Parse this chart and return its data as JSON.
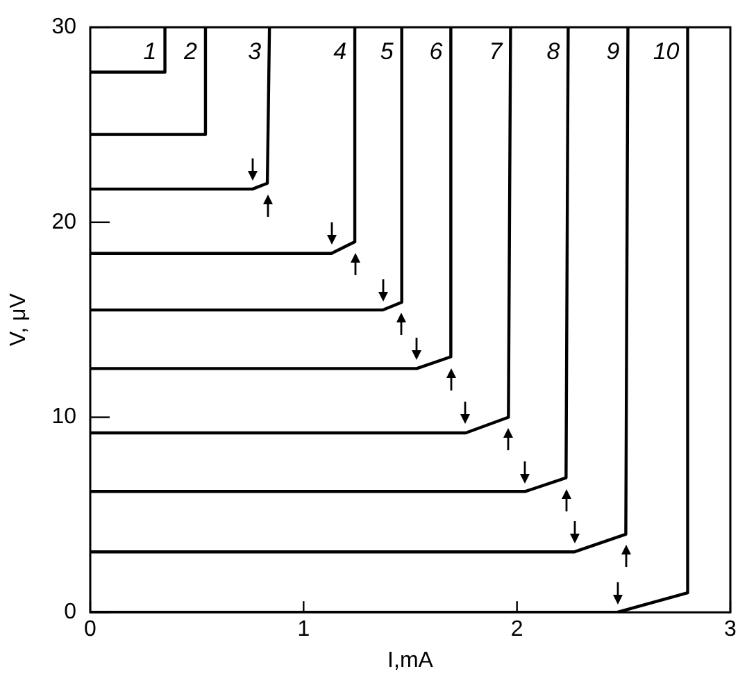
{
  "chart_data": {
    "type": "line",
    "xlabel": "I,mA",
    "ylabel": "V, μV",
    "xlim": [
      0,
      3
    ],
    "ylim": [
      0,
      30
    ],
    "xticks": [
      0,
      1,
      2,
      3
    ],
    "yticks": [
      0,
      10,
      20,
      30
    ],
    "grid": false,
    "legend": false,
    "marker": "none",
    "line_style": "solid",
    "series": [
      {
        "name": "1",
        "color": "#000000",
        "x": [
          0,
          0.35,
          0.35
        ],
        "values": [
          27.7,
          27.7,
          30
        ]
      },
      {
        "name": "2",
        "color": "#000000",
        "x": [
          0,
          0.54,
          0.54
        ],
        "values": [
          24.5,
          24.5,
          30
        ]
      },
      {
        "name": "3",
        "color": "#000000",
        "x": [
          0,
          0.76,
          0.83,
          0.84
        ],
        "values": [
          21.7,
          21.7,
          22.0,
          30
        ]
      },
      {
        "name": "4",
        "color": "#000000",
        "x": [
          0,
          1.13,
          1.24,
          1.24
        ],
        "values": [
          18.4,
          18.4,
          19.0,
          30
        ]
      },
      {
        "name": "5",
        "color": "#000000",
        "x": [
          0,
          1.37,
          1.46,
          1.46
        ],
        "values": [
          15.5,
          15.5,
          15.9,
          30
        ]
      },
      {
        "name": "6",
        "color": "#000000",
        "x": [
          0,
          1.53,
          1.69,
          1.69
        ],
        "values": [
          12.5,
          12.5,
          13.1,
          30
        ]
      },
      {
        "name": "7",
        "color": "#000000",
        "x": [
          0,
          1.76,
          1.96,
          1.97
        ],
        "values": [
          9.2,
          9.2,
          10.0,
          30
        ]
      },
      {
        "name": "8",
        "color": "#000000",
        "x": [
          0,
          2.04,
          2.23,
          2.24
        ],
        "values": [
          6.2,
          6.2,
          6.9,
          30
        ]
      },
      {
        "name": "9",
        "color": "#000000",
        "x": [
          0,
          2.27,
          2.51,
          2.52
        ],
        "values": [
          3.1,
          3.1,
          4.0,
          30
        ]
      },
      {
        "name": "10",
        "color": "#000000",
        "x": [
          0,
          2.47,
          2.8,
          2.8
        ],
        "values": [
          0,
          0,
          1.0,
          30
        ]
      }
    ]
  }
}
